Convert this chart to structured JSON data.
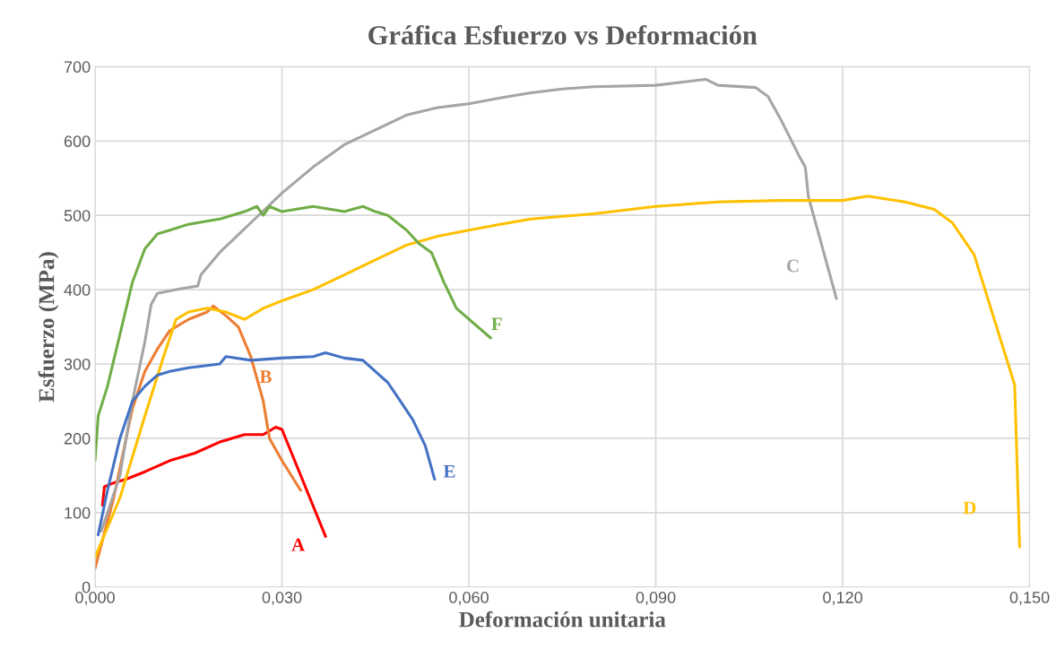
{
  "chart_data": {
    "type": "line",
    "title": "Gráfica Esfuerzo vs Deformación",
    "xlabel": "Deformación unitaria",
    "ylabel": "Esfuerzo (MPa)",
    "xlim": [
      0,
      0.15
    ],
    "ylim": [
      0,
      700
    ],
    "xticks": [
      {
        "value": 0,
        "label": "0,000"
      },
      {
        "value": 0.03,
        "label": "0,030"
      },
      {
        "value": 0.06,
        "label": "0,060"
      },
      {
        "value": 0.09,
        "label": "0,090"
      },
      {
        "value": 0.12,
        "label": "0,120"
      },
      {
        "value": 0.15,
        "label": "0,150"
      }
    ],
    "yticks": [
      0,
      100,
      200,
      300,
      400,
      500,
      600,
      700
    ],
    "grid": true,
    "marker": "none",
    "line_style": "solid",
    "series": [
      {
        "name": "A",
        "color": "#ff0000",
        "x": [
          0.0012,
          0.0015,
          0.003,
          0.005,
          0.008,
          0.012,
          0.016,
          0.02,
          0.024,
          0.027,
          0.029,
          0.03,
          0.037
        ],
        "values": [
          110,
          135,
          140,
          145,
          155,
          170,
          180,
          195,
          205,
          205,
          215,
          212,
          68
        ]
      },
      {
        "name": "B",
        "color": "#ed7d31",
        "x": [
          0.0,
          0.003,
          0.006,
          0.008,
          0.01,
          0.012,
          0.015,
          0.018,
          0.019,
          0.021,
          0.023,
          0.025,
          0.027,
          0.028,
          0.03,
          0.033
        ],
        "values": [
          25,
          120,
          240,
          290,
          320,
          345,
          360,
          370,
          378,
          365,
          350,
          310,
          250,
          200,
          170,
          130
        ]
      },
      {
        "name": "C",
        "color": "#a5a5a5",
        "x": [
          0.001,
          0.004,
          0.006,
          0.008,
          0.009,
          0.01,
          0.013,
          0.0165,
          0.017,
          0.02,
          0.025,
          0.03,
          0.035,
          0.04,
          0.045,
          0.05,
          0.055,
          0.06,
          0.065,
          0.07,
          0.075,
          0.08,
          0.09,
          0.098,
          0.1,
          0.106,
          0.108,
          0.11,
          0.113,
          0.114,
          0.1145,
          0.119
        ],
        "values": [
          75,
          150,
          250,
          330,
          380,
          395,
          400,
          405,
          420,
          450,
          490,
          530,
          565,
          595,
          615,
          635,
          645,
          650,
          658,
          665,
          670,
          673,
          675,
          683,
          675,
          672,
          660,
          630,
          580,
          565,
          525,
          388
        ]
      },
      {
        "name": "D",
        "color": "#ffc000",
        "x": [
          0.0,
          0.004,
          0.008,
          0.011,
          0.013,
          0.015,
          0.018,
          0.021,
          0.024,
          0.027,
          0.03,
          0.035,
          0.04,
          0.045,
          0.05,
          0.055,
          0.06,
          0.065,
          0.07,
          0.08,
          0.09,
          0.1,
          0.11,
          0.12,
          0.124,
          0.13,
          0.1347,
          0.1376,
          0.1411,
          0.1476,
          0.1484
        ],
        "values": [
          40,
          120,
          230,
          310,
          360,
          370,
          375,
          370,
          360,
          375,
          385,
          400,
          420,
          440,
          460,
          472,
          480,
          488,
          495,
          502,
          512,
          518,
          520,
          520,
          526,
          518,
          508,
          490,
          447,
          272,
          54
        ]
      },
      {
        "name": "E",
        "color": "#4472c4",
        "x": [
          0.0005,
          0.002,
          0.004,
          0.006,
          0.008,
          0.01,
          0.012,
          0.015,
          0.02,
          0.021,
          0.025,
          0.03,
          0.035,
          0.037,
          0.04,
          0.043,
          0.045,
          0.047,
          0.049,
          0.051,
          0.053,
          0.0545
        ],
        "values": [
          70,
          130,
          200,
          250,
          270,
          285,
          290,
          295,
          300,
          310,
          305,
          308,
          310,
          315,
          308,
          305,
          290,
          275,
          250,
          225,
          190,
          145
        ]
      },
      {
        "name": "F",
        "color": "#70ad47",
        "x": [
          0.0,
          0.0005,
          0.002,
          0.004,
          0.006,
          0.008,
          0.01,
          0.012,
          0.015,
          0.02,
          0.024,
          0.026,
          0.027,
          0.028,
          0.03,
          0.035,
          0.04,
          0.043,
          0.045,
          0.047,
          0.05,
          0.052,
          0.054,
          0.056,
          0.058,
          0.0635
        ],
        "values": [
          170,
          230,
          270,
          340,
          410,
          455,
          475,
          480,
          488,
          495,
          505,
          512,
          500,
          512,
          505,
          512,
          505,
          512,
          505,
          500,
          480,
          462,
          450,
          410,
          375,
          335
        ]
      }
    ]
  }
}
